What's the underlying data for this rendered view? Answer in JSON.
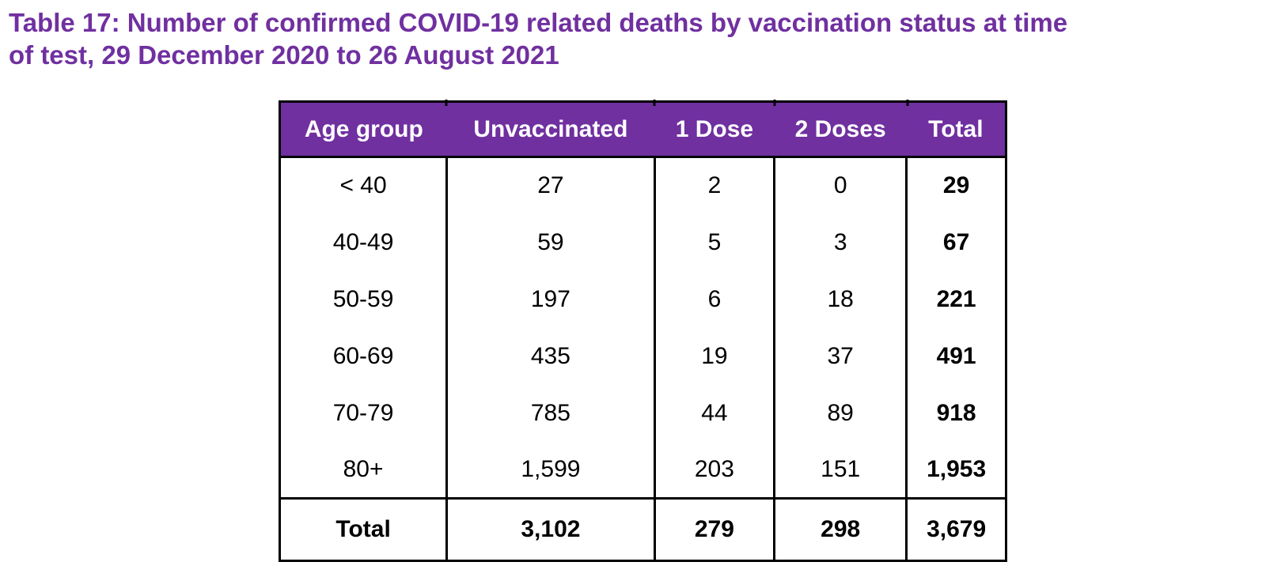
{
  "title": "Table 17: Number of confirmed COVID-19 related deaths by vaccination status at time\nof test, 29 December 2020 to 26 August 2021",
  "colors": {
    "title_purple": "#7030A0",
    "header_background": "#7030A0",
    "header_text": "#FFFFFF",
    "body_text": "#000000",
    "border": "#000000"
  },
  "chart_data": {
    "type": "table",
    "title": "Table 17: Number of confirmed COVID-19 related deaths by vaccination status at time of test, 29 December 2020 to 26 August 2021",
    "columns": [
      "Age group",
      "Unvaccinated",
      "1 Dose",
      "2 Doses",
      "Total"
    ],
    "rows": [
      [
        "< 40",
        "27",
        "2",
        "0",
        "29"
      ],
      [
        "40-49",
        "59",
        "5",
        "3",
        "67"
      ],
      [
        "50-59",
        "197",
        "6",
        "18",
        "221"
      ],
      [
        "60-69",
        "435",
        "19",
        "37",
        "491"
      ],
      [
        "70-79",
        "785",
        "44",
        "89",
        "918"
      ],
      [
        "80+",
        "1,599",
        "203",
        "151",
        "1,953"
      ]
    ],
    "total_row": [
      "Total",
      "3,102",
      "279",
      "298",
      "3,679"
    ]
  }
}
